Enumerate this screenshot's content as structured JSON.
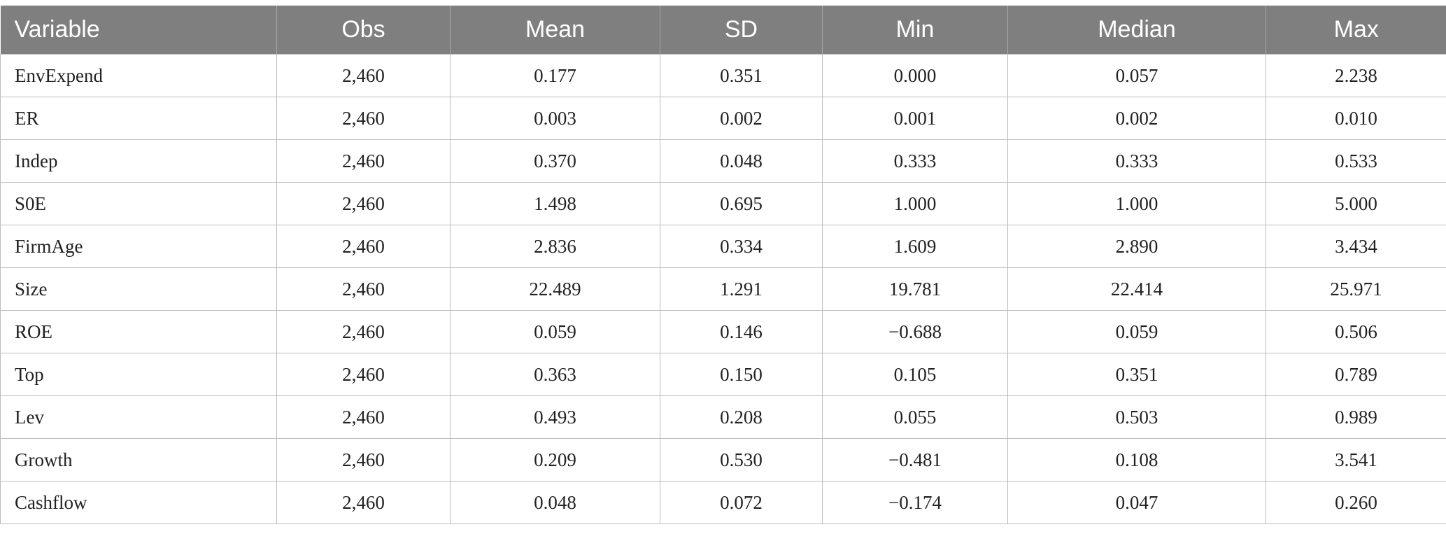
{
  "table": {
    "headers": [
      "Variable",
      "Obs",
      "Mean",
      "SD",
      "Min",
      "Median",
      "Max"
    ],
    "rows": [
      [
        "EnvExpend",
        "2,460",
        "0.177",
        "0.351",
        "0.000",
        "0.057",
        "2.238"
      ],
      [
        "ER",
        "2,460",
        "0.003",
        "0.002",
        "0.001",
        "0.002",
        "0.010"
      ],
      [
        "Indep",
        "2,460",
        "0.370",
        "0.048",
        "0.333",
        "0.333",
        "0.533"
      ],
      [
        "S0E",
        "2,460",
        "1.498",
        "0.695",
        "1.000",
        "1.000",
        "5.000"
      ],
      [
        "FirmAge",
        "2,460",
        "2.836",
        "0.334",
        "1.609",
        "2.890",
        "3.434"
      ],
      [
        "Size",
        "2,460",
        "22.489",
        "1.291",
        "19.781",
        "22.414",
        "25.971"
      ],
      [
        "ROE",
        "2,460",
        "0.059",
        "0.146",
        "−0.688",
        "0.059",
        "0.506"
      ],
      [
        "Top",
        "2,460",
        "0.363",
        "0.150",
        "0.105",
        "0.351",
        "0.789"
      ],
      [
        "Lev",
        "2,460",
        "0.493",
        "0.208",
        "0.055",
        "0.503",
        "0.989"
      ],
      [
        "Growth",
        "2,460",
        "0.209",
        "0.530",
        "−0.481",
        "0.108",
        "3.541"
      ],
      [
        "Cashflow",
        "2,460",
        "0.048",
        "0.072",
        "−0.174",
        "0.047",
        "0.260"
      ]
    ]
  }
}
